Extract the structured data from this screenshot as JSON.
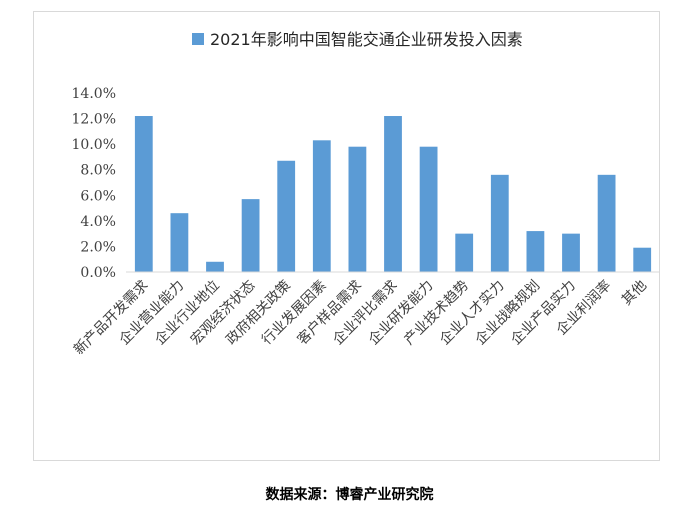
{
  "chart_data": {
    "type": "bar",
    "title": "",
    "categories": [
      "新产品开发需求",
      "企业营业能力",
      "企业行业地位",
      "宏观经济状态",
      "政府相关政策",
      "行业发展因素",
      "客户样品需求",
      "企业评比需求",
      "企业研发能力",
      "产业技术趋势",
      "企业人才实力",
      "企业战略规划",
      "企业产品实力",
      "企业利润率",
      "其他"
    ],
    "series": [
      {
        "name": "2021年影响中国智能交通企业研发投入因素",
        "color": "#5B9BD5",
        "values": [
          12.2,
          4.6,
          0.8,
          5.7,
          8.7,
          10.3,
          9.8,
          12.2,
          9.8,
          3.0,
          7.6,
          3.2,
          3.0,
          7.6,
          1.9
        ]
      }
    ],
    "ylim": [
      0,
      14
    ],
    "ytick_step": 2,
    "ytick_labels": [
      "0.0%",
      "2.0%",
      "4.0%",
      "6.0%",
      "8.0%",
      "10.0%",
      "12.0%",
      "14.0%"
    ],
    "legend_position": "top",
    "grid": false
  },
  "source_note": "数据来源：博睿产业研究院"
}
